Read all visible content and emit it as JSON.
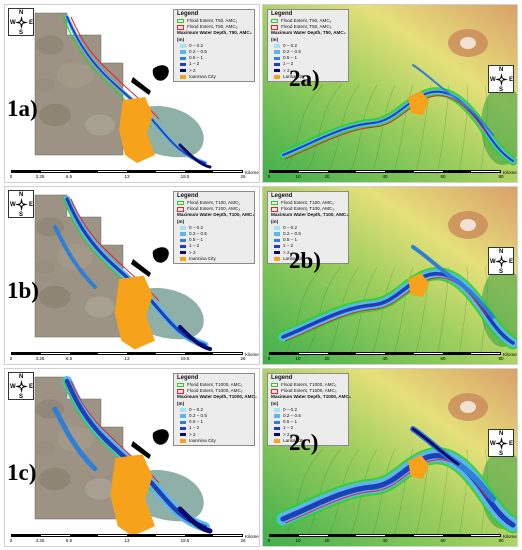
{
  "panels": {
    "p1a": {
      "label": "1a)",
      "legend": {
        "title": "Legend",
        "ext1": "Flood Extent, T50, AMC₁",
        "ext2": "Flood Extent, T50, AMC₃",
        "depth": "Maximum Water Depth, T50, AMC₃",
        "unit": "(m)",
        "city": "Ioannina City"
      }
    },
    "p1b": {
      "label": "1b)",
      "legend": {
        "title": "Legend",
        "ext1": "Flood Extent, T100, AMC₁",
        "ext2": "Flood Extent, T100, AMC₃",
        "depth": "Maximum Water Depth, T100, AMC₃",
        "unit": "(m)",
        "city": "Ioannina City"
      }
    },
    "p1c": {
      "label": "1c)",
      "legend": {
        "title": "Legend",
        "ext1": "Flood Extent, T1000, AMC₁",
        "ext2": "Flood Extent, T1000, AMC₃",
        "depth": "Maximum Water Depth, T1000, AMC₃",
        "unit": "(m)",
        "city": "Ioannina City"
      }
    },
    "p2a": {
      "label": "2a)",
      "legend": {
        "title": "Legend",
        "ext1": "Flood Extent, T50, AMC₁",
        "ext2": "Flood Extent, T50, AMC₃",
        "depth": "Maximum Water Depth, T50, AMC₃",
        "unit": "(m)",
        "city": "Larisa City"
      }
    },
    "p2b": {
      "label": "2b)",
      "legend": {
        "title": "Legend",
        "ext1": "Flood Extent, T100, AMC₁",
        "ext2": "Flood Extent, T100, AMC₃",
        "depth": "Maximum Water Depth, T100, AMC₃",
        "unit": "(m)",
        "city": "Larisa City"
      }
    },
    "p2c": {
      "label": "2c)",
      "legend": {
        "title": "Legend",
        "ext1": "Flood Extent, T1000, AMC₁",
        "ext2": "Flood Extent, T1000, AMC₃",
        "depth": "Maximum Water Depth, T1000, AMC₃",
        "unit": "(m)",
        "city": "Larisa City"
      }
    }
  },
  "depth_classes": [
    "0 – 0.2",
    "0.2 – 0.5",
    "0.5 – 1",
    "1 – 2",
    "> 2"
  ],
  "compass": {
    "n": "N",
    "s": "S",
    "e": "E",
    "w": "W"
  },
  "scale_left": {
    "ticks": [
      "0",
      "3.25",
      "6.5",
      "13",
      "19.5",
      "26"
    ],
    "unit": "Kilometers"
  },
  "scale_right": {
    "ticks": [
      "0",
      "10",
      "20",
      "40",
      "60",
      "80"
    ],
    "unit": "Kilometers"
  },
  "colors": {
    "extent_amc1": "#2bd12b",
    "extent_amc3": "#e8202a",
    "city": "#f7a21b",
    "depth": [
      "#a6e3f0",
      "#5bb7e8",
      "#2f7fd6",
      "#1d3fb8",
      "#0a0a6e"
    ],
    "satellite": "#9c9384",
    "lake": "#8fb0a6",
    "dem_low": "#3fae4c",
    "dem_mid": "#e6e07a",
    "dem_high": "#d9a06a"
  }
}
